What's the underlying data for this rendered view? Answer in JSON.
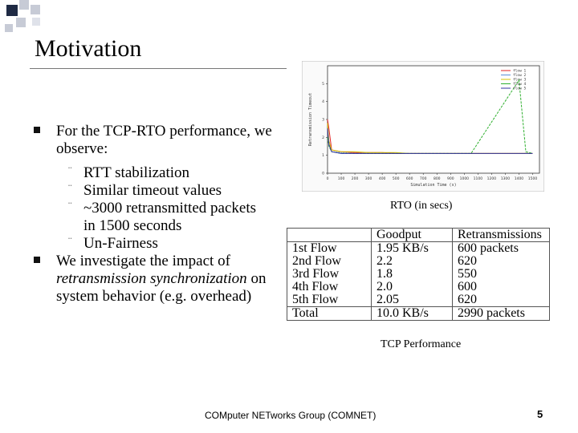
{
  "title": "Motivation",
  "bullets": [
    {
      "text": "For the TCP-RTO performance, we observe:",
      "subs": [
        "RTT stabilization",
        "Similar timeout values",
        "~3000 retransmitted packets in 1500 seconds",
        "Un-Fairness"
      ]
    },
    {
      "text_before": "We investigate the impact of ",
      "text_em": "retransmission synchronization",
      "text_after": " on system behavior (e.g. overhead)"
    }
  ],
  "checkbox_glyph": "¨",
  "chart_data": {
    "type": "line",
    "title": "",
    "xlabel": "Simulation Time (s)",
    "ylabel": "Retransmission Timeout",
    "xlim": [
      0,
      1550
    ],
    "ylim": [
      0,
      6
    ],
    "xticks": [
      "0",
      "100",
      "200",
      "300",
      "400",
      "500",
      "600",
      "700",
      "800",
      "900",
      "1000",
      "1100",
      "1200",
      "1300",
      "1400",
      "1500"
    ],
    "yticks": [
      "0",
      "1",
      "2",
      "3",
      "4",
      "5"
    ],
    "series": [
      {
        "name": "flow 1",
        "color": "#e02020",
        "x": [
          0,
          10,
          30,
          100,
          200,
          300,
          400,
          500,
          600,
          700,
          800,
          900,
          1000,
          1100,
          1200,
          1300,
          1400,
          1500
        ],
        "y": [
          3,
          2.5,
          1.3,
          1.2,
          1.15,
          1.15,
          1.15,
          1.1,
          1.1,
          1.1,
          1.1,
          1.1,
          1.1,
          1.1,
          1.1,
          1.1,
          1.1,
          1.1
        ]
      },
      {
        "name": "flow 2",
        "color": "#5b8fd8",
        "x": [
          0,
          10,
          30,
          100,
          200,
          300,
          400,
          500,
          600,
          700,
          800,
          900,
          1000,
          1100,
          1200,
          1300,
          1400,
          1500
        ],
        "y": [
          2,
          1.8,
          1.2,
          1.15,
          1.1,
          1.1,
          1.1,
          1.1,
          1.1,
          1.1,
          1.1,
          1.1,
          1.1,
          1.1,
          1.1,
          1.1,
          1.1,
          1.1
        ]
      },
      {
        "name": "flow 3",
        "color": "#d4c400",
        "x": [
          0,
          10,
          30,
          100,
          200,
          300,
          400,
          500,
          600,
          700,
          800,
          900,
          1000,
          1100,
          1200,
          1300,
          1400,
          1500
        ],
        "y": [
          2.8,
          1.8,
          1.3,
          1.2,
          1.2,
          1.15,
          1.15,
          1.15,
          1.1,
          1.1,
          1.1,
          1.1,
          1.1,
          1.1,
          1.1,
          1.1,
          1.1,
          1.1
        ]
      },
      {
        "name": "flow 4",
        "color": "#30b030",
        "x": [
          0,
          10,
          30,
          100,
          200,
          300,
          400,
          500,
          600,
          700,
          800,
          900,
          1000,
          1050,
          1400,
          1450,
          1500
        ],
        "y": [
          2,
          1.5,
          1.2,
          1.1,
          1.1,
          1.1,
          1.1,
          1.1,
          1.1,
          1.1,
          1.1,
          1.1,
          1.1,
          1.1,
          5.2,
          1.2,
          1.1
        ]
      },
      {
        "name": "flow 5",
        "color": "#3030a0",
        "x": [
          0,
          10,
          30,
          100,
          200,
          300,
          400,
          500,
          600,
          700,
          800,
          900,
          1000,
          1100,
          1200,
          1300,
          1400,
          1500
        ],
        "y": [
          2.5,
          1.6,
          1.2,
          1.1,
          1.1,
          1.1,
          1.1,
          1.1,
          1.1,
          1.1,
          1.1,
          1.1,
          1.1,
          1.1,
          1.1,
          1.1,
          1.1,
          1.1
        ]
      }
    ]
  },
  "caption1": "RTO (in secs)",
  "table": {
    "headers": [
      "",
      "Goodput",
      "Retransmissions"
    ],
    "rows": [
      [
        "1st Flow",
        "1.95 KB/s",
        "600 packets"
      ],
      [
        "2nd Flow",
        "2.2",
        "620"
      ],
      [
        "3rd Flow",
        "1.8",
        "550"
      ],
      [
        "4th Flow",
        "2.0",
        "600"
      ],
      [
        "5th Flow",
        "2.05",
        "620"
      ]
    ],
    "total": [
      "Total",
      "10.0 KB/s",
      "2990 packets"
    ]
  },
  "caption2": "TCP Performance",
  "footer": "COMputer NETworks Group (COMNET)",
  "page_number": "5",
  "colors": {
    "deco_dark": "#1f2a44",
    "deco_light": "#c7cbd6",
    "rule": "#777777"
  }
}
